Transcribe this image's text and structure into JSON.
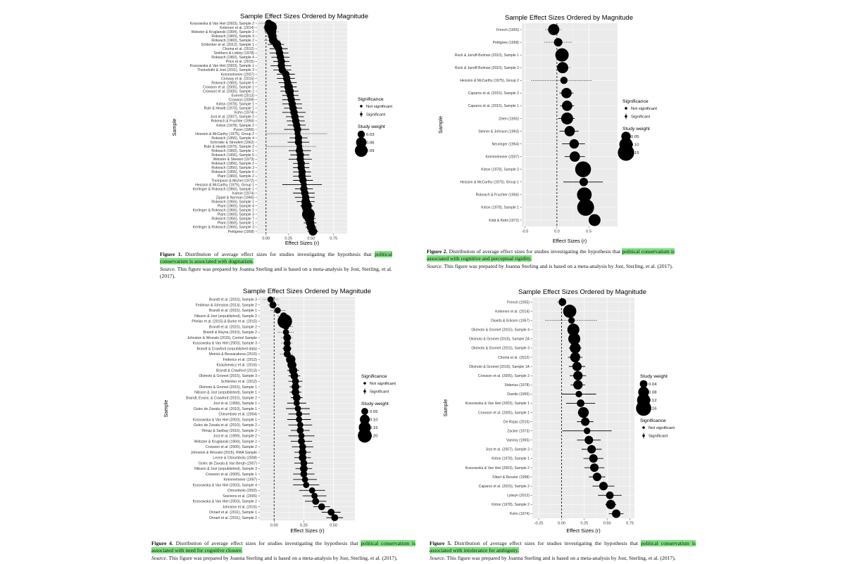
{
  "chart_data": [
    {
      "type": "forest",
      "title": "Sample Effect Sizes Ordered by Magnitude",
      "xlabel": "Effect Sizes (r)",
      "ylabel": "Sample",
      "xlim": [
        -0.1,
        0.9
      ],
      "xticks": [
        "0.00",
        "0.25",
        "0.50",
        "0.75"
      ],
      "xtick_values": [
        0,
        0.25,
        0.5,
        0.75
      ],
      "legend_position": "right",
      "legend_order": [
        "significance",
        "weight"
      ],
      "sig_title": "Significance",
      "sig_items": [
        "Not significant",
        "Significant"
      ],
      "weight_title": "Study weight",
      "weight_items": [
        "0.03",
        "0.06",
        "0.09"
      ],
      "weight_values": [
        0.03,
        0.06,
        0.09
      ],
      "labels": [
        "Kossowska & Van Hiel (2003), Sample 2",
        "Kelemen et al. (2014)",
        "Webster & Kruglanski (1994), Sample 2",
        "Rokeach (1960), Sample 3",
        "Rokeach (1960), Sample 2",
        "Schlenker et al. (2012), Sample 1",
        "Choma et al. (2012)",
        "Smithers & Lobley (1978)",
        "Rokeach (1960), Sample 4",
        "Price et al. (2015)",
        "Kossowska & Van Hiel (2003), Sample 1",
        "Thorisdottir & Jost (2011), Sample 3",
        "Kemmelmeier (2007)",
        "Conway et al. (2015)",
        "Rokeach (1960), Sample 5",
        "Crowson et al. (2005), Sample 1",
        "Crowson et al. (2005), Sample 2",
        "Everett (2013)",
        "Crowson (2009)",
        "Kirton (1978), Sample 1",
        "Rule & Hewitt (1970), Sample 1",
        "Kohn (1974)",
        "Jost et al. (2007), Sample 2",
        "Rokeach & Fruchter (1956)",
        "Kirton (1978), Sample 2",
        "Pyron (1966)",
        "Hession & McCarthy (1975), Group 2",
        "Rokeach (1956), Sample 4",
        "Schroder & Streufert (1962)",
        "Rule & Hewitt (1970), Sample 2",
        "Rokeach (1960), Sample 1",
        "Rokeach (1956), Sample 5",
        "Webster & Stewart (1973)",
        "Rokeach (1956), Sample 2",
        "Rokeach (1956), Sample 3",
        "Rokeach (1956), Sample 6",
        "Plant (1960), Sample 2",
        "Thompson & Michel (1972)",
        "Hession & McCarthy (1975), Group 1",
        "Kerlinger & Rokeach (1966), Sample 1",
        "Kahoe (1974)",
        "Zippel & Norman (1966)",
        "Rokeach (1956), Sample 1",
        "Plant (1960), Sample 4",
        "Kerlinger & Rokeach (1966), Sample 2",
        "Plant (1960), Sample 3",
        "Rokeach (1956), Sample 7",
        "Plant (1960), Sample 1",
        "Kerlinger & Rokeach (1966), Sample 3",
        "Pettigrew (1958)"
      ],
      "estimates": [
        0.03,
        0.05,
        0.06,
        0.07,
        0.08,
        0.12,
        0.14,
        0.15,
        0.16,
        0.17,
        0.17,
        0.18,
        0.22,
        0.23,
        0.24,
        0.25,
        0.26,
        0.27,
        0.28,
        0.29,
        0.3,
        0.31,
        0.32,
        0.33,
        0.34,
        0.35,
        0.35,
        0.36,
        0.36,
        0.37,
        0.37,
        0.38,
        0.38,
        0.39,
        0.39,
        0.4,
        0.4,
        0.41,
        0.42,
        0.42,
        0.43,
        0.44,
        0.44,
        0.45,
        0.46,
        0.47,
        0.48,
        0.49,
        0.5,
        0.52
      ],
      "ci_low": [
        -0.08,
        -0.03,
        -0.02,
        -0.01,
        -0.02,
        0.02,
        0.04,
        0.04,
        0.06,
        0.08,
        0.05,
        0.08,
        0.12,
        0.12,
        0.14,
        0.16,
        0.16,
        0.18,
        0.18,
        0.18,
        0.2,
        0.18,
        0.22,
        0.23,
        0.24,
        0.2,
        0.0,
        0.26,
        0.24,
        0.0,
        0.25,
        0.27,
        0.25,
        0.3,
        0.3,
        0.3,
        0.3,
        0.3,
        0.18,
        0.32,
        0.3,
        0.32,
        0.34,
        0.38,
        0.4,
        0.4,
        0.42,
        0.42,
        0.44,
        0.46
      ],
      "ci_high": [
        0.12,
        0.12,
        0.14,
        0.14,
        0.16,
        0.2,
        0.24,
        0.25,
        0.26,
        0.26,
        0.28,
        0.28,
        0.32,
        0.32,
        0.34,
        0.34,
        0.36,
        0.36,
        0.38,
        0.4,
        0.4,
        0.44,
        0.42,
        0.43,
        0.44,
        0.48,
        0.68,
        0.46,
        0.48,
        0.56,
        0.5,
        0.48,
        0.51,
        0.48,
        0.48,
        0.5,
        0.5,
        0.52,
        0.62,
        0.52,
        0.54,
        0.54,
        0.54,
        0.52,
        0.52,
        0.54,
        0.55,
        0.56,
        0.56,
        0.58
      ],
      "weights": [
        0.03,
        0.09,
        0.05,
        0.04,
        0.04,
        0.04,
        0.03,
        0.03,
        0.03,
        0.03,
        0.03,
        0.03,
        0.03,
        0.03,
        0.03,
        0.04,
        0.04,
        0.03,
        0.03,
        0.03,
        0.03,
        0.03,
        0.03,
        0.03,
        0.03,
        0.03,
        0.02,
        0.03,
        0.03,
        0.02,
        0.03,
        0.03,
        0.03,
        0.03,
        0.03,
        0.03,
        0.03,
        0.03,
        0.02,
        0.03,
        0.03,
        0.03,
        0.04,
        0.06,
        0.04,
        0.09,
        0.05,
        0.04,
        0.04,
        0.04
      ],
      "significant": [
        false,
        false,
        false,
        false,
        false,
        true,
        true,
        true,
        true,
        true,
        true,
        true,
        true,
        true,
        true,
        true,
        true,
        true,
        true,
        true,
        true,
        true,
        true,
        true,
        true,
        true,
        false,
        true,
        true,
        false,
        true,
        true,
        true,
        true,
        true,
        true,
        true,
        true,
        true,
        true,
        true,
        true,
        true,
        true,
        true,
        true,
        true,
        true,
        true,
        true
      ]
    },
    {
      "type": "forest",
      "title": "Sample Effect Sizes Ordered by Magnitude",
      "xlabel": "Effect Sizes (r)",
      "ylabel": "Sample",
      "xlim": [
        -0.55,
        0.95
      ],
      "xticks": [
        "-0.5",
        "0.0",
        "0.5"
      ],
      "xtick_values": [
        -0.5,
        0,
        0.5
      ],
      "legend_position": "right",
      "legend_order": [
        "significance",
        "weight"
      ],
      "sig_title": "Significance",
      "sig_items": [
        "Not significant",
        "Significant"
      ],
      "weight_title": "Study weight",
      "weight_items": [
        "0.05",
        "0.10",
        "0.15"
      ],
      "weight_values": [
        0.05,
        0.1,
        0.15
      ],
      "labels": [
        "French (1955)",
        "Pettigrew (1958)",
        "Rock & Janoff-Bulman (2010), Sample 1",
        "Rock & Janoff-Bulman (2010), Sample 2",
        "Hession & McCarthy (1975), Group 2",
        "Caparos et al. (2015), Sample 2",
        "Caparos et al. (2015), Sample 1",
        "Zelen (1955)",
        "Steiner & Johnson (1963)",
        "Neuringer (1964)",
        "Kemmelmeier (2007)",
        "Kirton (1978), Sample 2",
        "Hession & McCarthy (1975), Group 1",
        "Rokeach & Fruchter (1956)",
        "Kirton (1978), Sample 1",
        "Kidd & Kidd (1972)"
      ],
      "estimates": [
        -0.05,
        0.02,
        0.08,
        0.09,
        0.11,
        0.15,
        0.16,
        0.16,
        0.2,
        0.27,
        0.28,
        0.41,
        0.42,
        0.43,
        0.45,
        0.59
      ],
      "ci_low": [
        -0.18,
        -0.2,
        0.02,
        0.0,
        -0.4,
        0.04,
        0.05,
        0.02,
        0.04,
        0.08,
        0.12,
        0.36,
        0.1,
        0.35,
        0.38,
        0.52
      ],
      "ci_high": [
        0.08,
        0.24,
        0.16,
        0.22,
        0.55,
        0.26,
        0.27,
        0.28,
        0.34,
        0.44,
        0.44,
        0.46,
        0.72,
        0.5,
        0.52,
        0.66
      ],
      "weights": [
        0.07,
        0.04,
        0.1,
        0.07,
        0.03,
        0.06,
        0.06,
        0.08,
        0.06,
        0.05,
        0.06,
        0.14,
        0.04,
        0.12,
        0.16,
        0.08
      ],
      "significant": [
        false,
        false,
        false,
        false,
        false,
        true,
        true,
        true,
        true,
        true,
        true,
        true,
        true,
        true,
        true,
        true
      ]
    },
    {
      "type": "forest",
      "title": "Sample Effect Sizes Ordered by Magnitude",
      "xlabel": "Effect Sizes (r)",
      "ylabel": "Sample",
      "xlim": [
        -0.12,
        0.68
      ],
      "xticks": [
        "0.00",
        "0.25",
        "0.50"
      ],
      "xtick_values": [
        0,
        0.25,
        0.5
      ],
      "legend_position": "right",
      "legend_order": [
        "significance",
        "weight"
      ],
      "sig_title": "Significance",
      "sig_items": [
        "Not significant",
        "Significant"
      ],
      "weight_title": "Study weight",
      "weight_items": [
        "0.05",
        "0.10",
        "0.15",
        "0.20"
      ],
      "weight_values": [
        0.05,
        0.1,
        0.15,
        0.2
      ],
      "labels": [
        "Brandt et al. (2015), Sample 3",
        "Feldman & Johnston (2014), Sample 2",
        "Brandt et al. (2015), Sample 1",
        "Nilsson & Jost (unpublished), Sample 2",
        "Phelan et al. (2015) & Burke et al. (2015)",
        "Brandt et al. (2015), Sample 2",
        "Brandt & Reyna (2010), Sample 2",
        "Johnston & Wronski (2015), Control Sample",
        "Kossowska & Van Hiel (2003), Sample 3",
        "Brandt & Crawford (unpublished data)",
        "Meirick & Bessarabova (2015)",
        "Federico et al. (2012)",
        "Ksiazkiewicz et al. (2016)",
        "Brandt & Crawford (2013)",
        "Okimoto & Gromet (2015), Sample 3",
        "Schlenker et al. (2012)",
        "Okimoto & Gromet (2015), Sample 1",
        "Nilsson & Jost (unpublished), Sample 1",
        "Brandt, Evans, & Crawford (2015), Sample 2",
        "Jost et al. (1999), Sample 1",
        "Golec de Zavala et al. (2010), Sample 1",
        "Chirumbolo et al. (2004)",
        "Kossowska & Van Hiel (2003), Sample 1",
        "Golec de Zavala et al. (2010), Sample 2",
        "Yilmaz & Saribay (2016), Sample 2",
        "Jost et al. (1999), Sample 2",
        "Webster & Kruglanski (1994), Sample 2",
        "Crowson et al. (2005), Sample 2",
        "Johnston & Wronski (2015), RWA Sample",
        "Leone & Chirumbolo (2008)",
        "Golec de Zavala & Van Bergh (2007)",
        "Nilsson & Jost (unpublished), Sample 3",
        "Crowson et al. (2005), Sample 1",
        "Kemmelmeier (1997)",
        "Kossowska & Van Hiel (2003), Sample 4",
        "Chirumbolo (2002)",
        "Soenens et al. (2005)",
        "Kossowska & Van Hiel (2003), Sample 2",
        "Johnston et al. (2015)",
        "Onraet et al. (2011), Sample 1",
        "Onraet et al. (2011), Sample 2"
      ],
      "estimates": [
        -0.03,
        -0.01,
        0.03,
        0.08,
        0.09,
        0.1,
        0.1,
        0.11,
        0.11,
        0.11,
        0.11,
        0.14,
        0.15,
        0.16,
        0.17,
        0.18,
        0.18,
        0.18,
        0.19,
        0.19,
        0.2,
        0.21,
        0.21,
        0.22,
        0.22,
        0.23,
        0.23,
        0.24,
        0.24,
        0.24,
        0.25,
        0.25,
        0.25,
        0.26,
        0.27,
        0.32,
        0.34,
        0.35,
        0.4,
        0.48,
        0.51
      ],
      "ci_low": [
        -0.1,
        -0.05,
        -0.03,
        0.03,
        0.06,
        0.05,
        0.03,
        0.06,
        0.06,
        0.07,
        0.05,
        0.1,
        0.11,
        0.11,
        0.12,
        0.12,
        0.13,
        0.13,
        0.14,
        0.11,
        0.1,
        0.12,
        0.11,
        0.12,
        0.14,
        0.12,
        0.14,
        0.15,
        0.17,
        0.17,
        0.17,
        0.18,
        0.16,
        0.16,
        0.16,
        0.21,
        0.24,
        0.26,
        0.33,
        0.4,
        0.44
      ],
      "ci_high": [
        0.04,
        0.05,
        0.1,
        0.13,
        0.12,
        0.16,
        0.17,
        0.16,
        0.16,
        0.15,
        0.16,
        0.18,
        0.19,
        0.21,
        0.22,
        0.24,
        0.23,
        0.23,
        0.24,
        0.27,
        0.3,
        0.3,
        0.31,
        0.32,
        0.3,
        0.34,
        0.32,
        0.33,
        0.31,
        0.31,
        0.33,
        0.32,
        0.34,
        0.36,
        0.38,
        0.43,
        0.44,
        0.44,
        0.47,
        0.56,
        0.58
      ],
      "weights": [
        0.04,
        0.05,
        0.04,
        0.05,
        0.22,
        0.04,
        0.04,
        0.06,
        0.05,
        0.06,
        0.05,
        0.09,
        0.08,
        0.07,
        0.06,
        0.05,
        0.06,
        0.06,
        0.06,
        0.04,
        0.04,
        0.04,
        0.04,
        0.04,
        0.05,
        0.04,
        0.05,
        0.05,
        0.06,
        0.06,
        0.05,
        0.06,
        0.05,
        0.04,
        0.04,
        0.04,
        0.04,
        0.05,
        0.05,
        0.05,
        0.05
      ],
      "significant": [
        false,
        false,
        false,
        false,
        true,
        false,
        false,
        false,
        false,
        false,
        false,
        true,
        true,
        true,
        true,
        true,
        true,
        true,
        true,
        true,
        true,
        true,
        true,
        true,
        true,
        true,
        true,
        true,
        true,
        true,
        true,
        true,
        true,
        true,
        true,
        true,
        true,
        true,
        true,
        true,
        true
      ]
    },
    {
      "type": "forest",
      "title": "Sample Effect Sizes Ordered by Magnitude",
      "xlabel": "Effect Sizes (r)",
      "ylabel": "Sample",
      "xlim": [
        -0.32,
        0.8
      ],
      "xticks": [
        "-0.25",
        "0.00",
        "0.25",
        "0.50",
        "0.75"
      ],
      "xtick_values": [
        -0.25,
        0,
        0.25,
        0.5,
        0.75
      ],
      "legend_position": "right",
      "legend_order": [
        "weight",
        "significance"
      ],
      "sig_title": "Significance",
      "sig_items": [
        "Not significant",
        "Significant"
      ],
      "weight_title": "Study weight",
      "weight_items": [
        "0.04",
        "0.08",
        "0.12",
        "0.16"
      ],
      "weight_values": [
        0.04,
        0.08,
        0.12,
        0.16
      ],
      "labels": [
        "French (1955)",
        "Kelemen et al. (2014)",
        "Davids & Eriksen (1957)",
        "Okimoto & Gromet (2015), Sample 4",
        "Okimoto & Gromet (2015), Sample 2A",
        "Okimoto & Gromet (2015), Sample 3",
        "Choma et al. (2012)",
        "Okimoto & Gromet (2015), Sample 1A",
        "Crowson et al. (2005), Sample 2",
        "Sidanius (1978)",
        "Davids (1955)",
        "Kossowska & Van Hiel (2003), Sample 1",
        "Crowson et al. (2005), Sample 1",
        "De Rojas (2015)",
        "Zacker (1973)",
        "Vannoy (1965)",
        "Jost et al. (2007), Sample 3",
        "Kirton (1978), Sample 1",
        "Kossowska & Van Hiel (2003), Sample 2",
        "Fibert & Ressler (1998)",
        "Caparos et al. (2015), Sample 2",
        "Lytwyn (2012)",
        "Kirton (1978), Sample 2",
        "Kohn (1974)"
      ],
      "estimates": [
        0.01,
        0.09,
        0.11,
        0.13,
        0.14,
        0.15,
        0.15,
        0.17,
        0.18,
        0.18,
        0.19,
        0.21,
        0.24,
        0.26,
        0.28,
        0.3,
        0.33,
        0.35,
        0.36,
        0.39,
        0.46,
        0.53,
        0.54,
        0.6
      ],
      "ci_low": [
        -0.05,
        0.03,
        -0.18,
        0.08,
        0.08,
        0.08,
        0.07,
        0.08,
        0.09,
        0.1,
        0.0,
        0.05,
        0.18,
        0.17,
        0.01,
        0.17,
        0.22,
        0.24,
        0.25,
        0.3,
        0.34,
        0.4,
        0.48,
        0.52
      ],
      "ci_high": [
        0.06,
        0.15,
        0.39,
        0.18,
        0.2,
        0.22,
        0.23,
        0.26,
        0.27,
        0.26,
        0.38,
        0.37,
        0.3,
        0.35,
        0.55,
        0.43,
        0.44,
        0.46,
        0.47,
        0.48,
        0.58,
        0.66,
        0.6,
        0.68
      ],
      "weights": [
        0.04,
        0.12,
        0.03,
        0.1,
        0.1,
        0.08,
        0.07,
        0.06,
        0.06,
        0.06,
        0.03,
        0.04,
        0.08,
        0.05,
        0.03,
        0.05,
        0.05,
        0.05,
        0.05,
        0.05,
        0.05,
        0.04,
        0.06,
        0.05
      ],
      "significant": [
        false,
        false,
        false,
        true,
        true,
        true,
        true,
        true,
        true,
        true,
        true,
        true,
        true,
        true,
        true,
        true,
        true,
        true,
        true,
        true,
        true,
        true,
        true,
        true
      ]
    }
  ],
  "captions": [
    {
      "fig": "Figure 1.",
      "pre": " Distribution of average effect sizes for studies investigating the hypothesis that ",
      "hl": "political conservatism is associated with dogmatism.",
      "post": "",
      "src_label": "Source",
      "src": ". This figure was prepared by Joanna Sterling and is based on a meta-analysis by Jost, Sterling, et al. (2017)."
    },
    {
      "fig": "Figure 2.",
      "pre": " Distribution of average effect sizes for studies investigating the hypothesis that ",
      "hl": "political conservatism is associated with cognitive and perceptual rigidity.",
      "post": "",
      "src_label": "Source",
      "src": ". This figure was prepared by Joanna Sterling and is based on a meta-analysis by Jost, Sterling, et al. (2017)."
    },
    {
      "fig": "Figure 4.",
      "pre": " Distribution of average effect sizes for studies investigating the hypothesis that ",
      "hl": "political conservatism is associated with need for cognitive closure.",
      "post": "",
      "src_label": "Source",
      "src": ". This figure was prepared by Joanna Sterling and is based on a meta-analysis by Jost, Sterling, et al. (2017)."
    },
    {
      "fig": "Figure 5.",
      "pre": " Distribution of average effect sizes for studies investigating the hypothesis that ",
      "hl": "political conservatism is associated with intolerance for ambiguity.",
      "post": "",
      "src_label": "Source",
      "src": ". This figure was prepared by Joanna Sterling and is based on a meta-analysis by Jost, Sterling, et al. (2017)."
    }
  ]
}
